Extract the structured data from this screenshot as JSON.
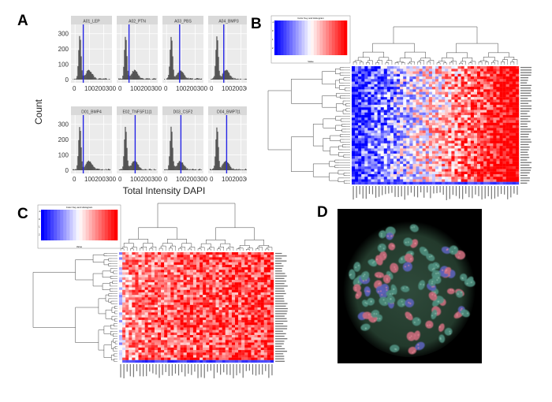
{
  "panels": {
    "A": {
      "letter": "A",
      "y_title": "Count",
      "x_title": "Total Intensity DAPI",
      "y_ticks": [
        "0",
        "100",
        "200",
        "300"
      ],
      "x_ticks": [
        "0",
        "100200300"
      ],
      "facets": [
        {
          "label": "A01_LEP",
          "vline": 0.3
        },
        {
          "label": "A02_PTN",
          "vline": 0.3
        },
        {
          "label": "A03_PBS",
          "vline": 0.42
        },
        {
          "label": "A04_BMP3",
          "vline": 0.38
        },
        {
          "label": "D01_BMP4",
          "vline": 0.3
        },
        {
          "label": "E02_TNFSF11|1",
          "vline": 0.45
        },
        {
          "label": "D03_CSF2",
          "vline": 0.45
        },
        {
          "label": "D04_BMP7|1",
          "vline": 0.45
        }
      ]
    },
    "B": {
      "letter": "B",
      "legend_title": "Color Key and Histogram",
      "legend_xlabel": "Value",
      "scale_ticks": [
        "-1",
        "0",
        "1",
        "2"
      ],
      "rows": 46,
      "cols": 52
    },
    "C": {
      "letter": "C",
      "legend_title": "Color Key and Histogram",
      "legend_xlabel": "Value",
      "scale_ticks": [
        "-1",
        "0",
        "1",
        "2"
      ],
      "rows": 44,
      "cols": 48
    },
    "D": {
      "letter": "D",
      "cells": 95
    }
  }
}
